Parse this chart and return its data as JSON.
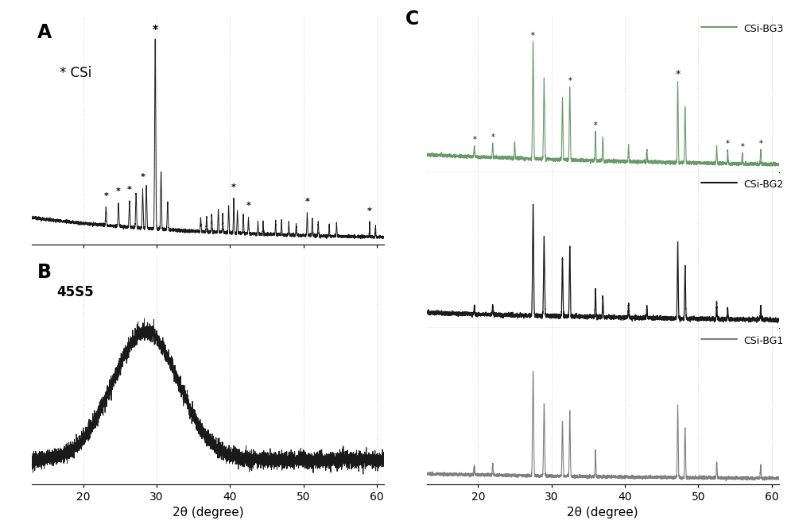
{
  "xlim": [
    13,
    61
  ],
  "xticks": [
    20,
    30,
    40,
    50,
    60
  ],
  "xlabel": "2θ (degree)",
  "bg_color": "#ffffff",
  "dotgrid_color": "#cccccc",
  "panel_A_label": "A",
  "panel_B_label": "B",
  "panel_C_label": "C",
  "panel_A_text": "* CSi",
  "panel_B_text": "45S5",
  "legend_C": [
    "CSi-BG3",
    "CSi-BG2",
    "CSi-BG1"
  ],
  "color_csi_bg1": "#7f7f7f",
  "color_csi_bg2": "#1a1a1a",
  "color_csi_bg3": "#6a9a6a",
  "color_line_A": "#1a1a1a",
  "color_line_B": "#1a1a1a"
}
